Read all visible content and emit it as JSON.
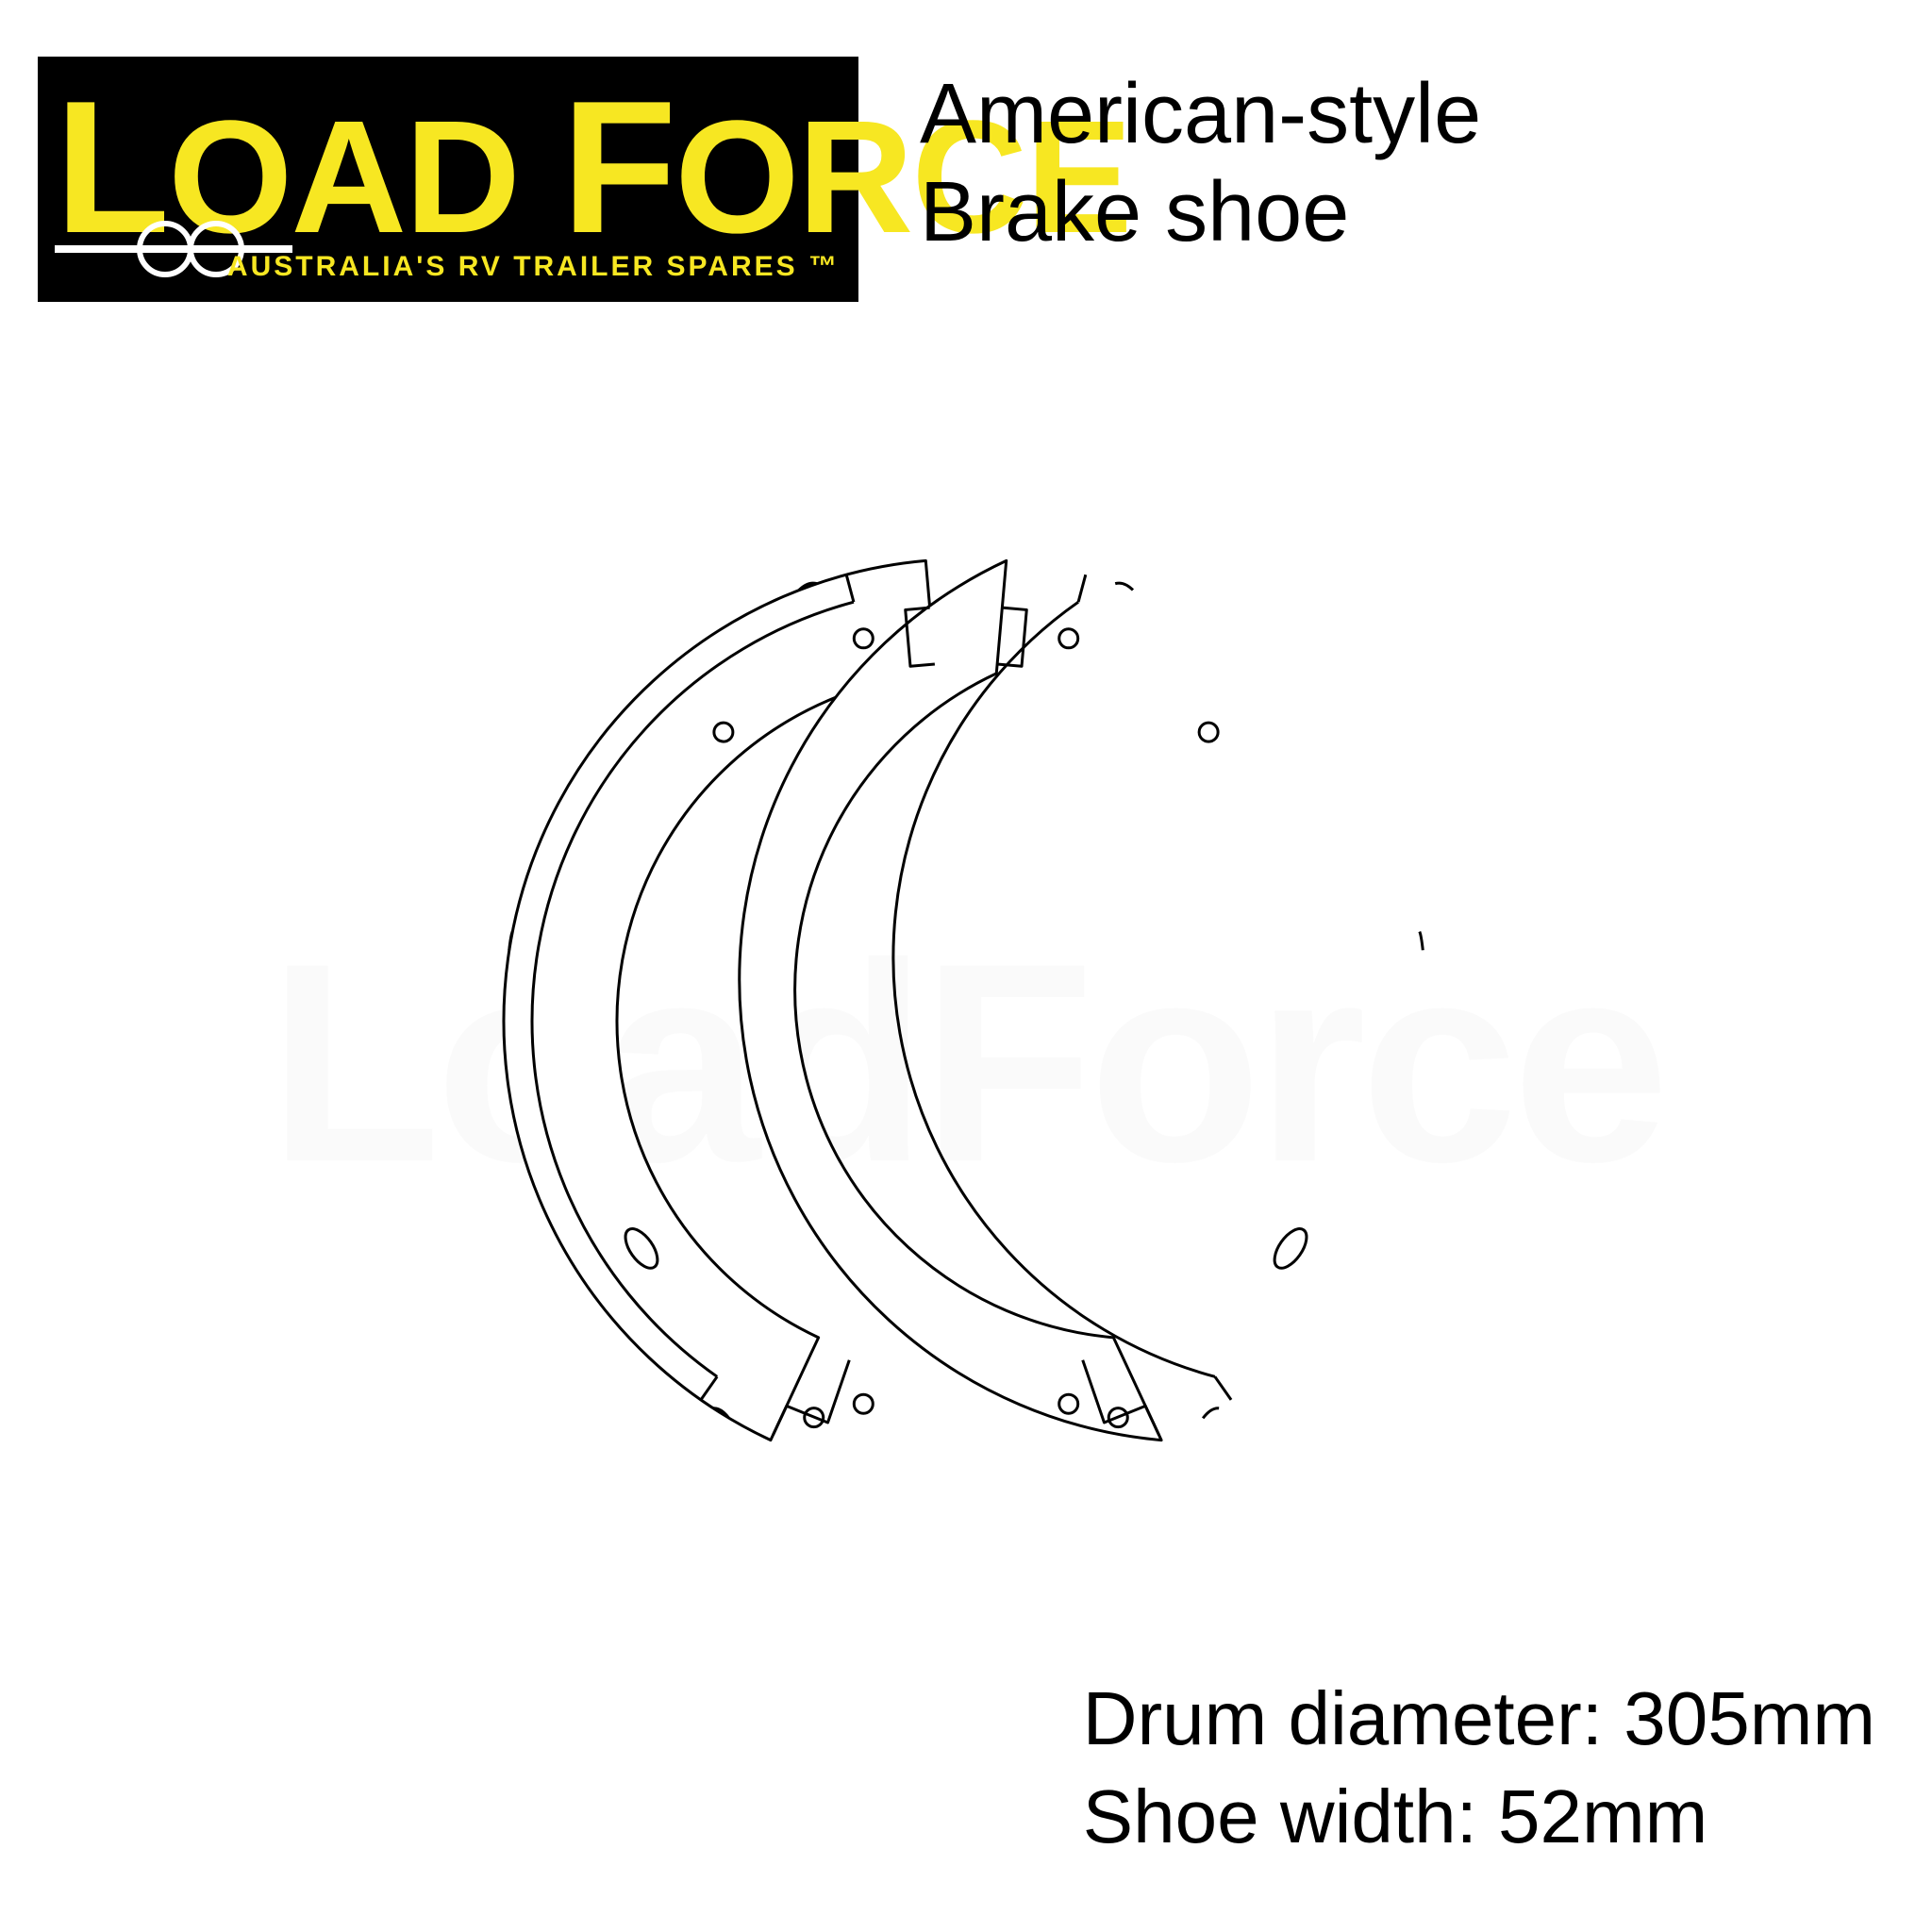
{
  "logo": {
    "word1_initial": "L",
    "word1_rest": "OAD",
    "word2_initial": "F",
    "word2_rest": "ORCE",
    "tagline": "AUSTRALIA'S RV TRAILER SPARES ™",
    "bg_color": "#000000",
    "fg_color": "#f7e722"
  },
  "title": {
    "line1": "American-style",
    "line2": "Brake shoe"
  },
  "specs": {
    "line1": "Drum diameter: 305mm",
    "line2": "Shoe width:  52mm"
  },
  "watermark": "LoadForce",
  "diagram": {
    "type": "line-drawing",
    "stroke": "#000000",
    "stroke_width": 3,
    "outer_radius": 490,
    "inner_radius": 370,
    "lining_inner_radius": 460,
    "gap_top_deg": 10,
    "gap_bottom_deg": 50,
    "holes": [
      {
        "side": "left",
        "angle_deg": 75,
        "r": 420,
        "rx": 10,
        "ry": 10
      },
      {
        "side": "right",
        "angle_deg": 105,
        "r": 420,
        "rx": 10,
        "ry": 10
      },
      {
        "side": "left",
        "angle_deg": 130,
        "r": 400,
        "rx": 10,
        "ry": 10
      },
      {
        "side": "right",
        "angle_deg": 50,
        "r": 400,
        "rx": 10,
        "ry": 10
      },
      {
        "side": "left",
        "angle_deg": 215,
        "r": 420,
        "rx": 24,
        "ry": 12
      },
      {
        "side": "right",
        "angle_deg": -35,
        "r": 420,
        "rx": 24,
        "ry": 12
      },
      {
        "side": "left",
        "angle_deg": 255,
        "r": 420,
        "rx": 10,
        "ry": 10
      },
      {
        "side": "right",
        "angle_deg": -75,
        "r": 420,
        "rx": 10,
        "ry": 10
      }
    ],
    "rivets": [
      {
        "side": "left",
        "angle_deg": 110
      },
      {
        "side": "right",
        "angle_deg": 70
      },
      {
        "side": "left",
        "angle_deg": 170
      },
      {
        "side": "right",
        "angle_deg": 10
      },
      {
        "side": "left",
        "angle_deg": 238
      },
      {
        "side": "right",
        "angle_deg": -58
      }
    ]
  }
}
